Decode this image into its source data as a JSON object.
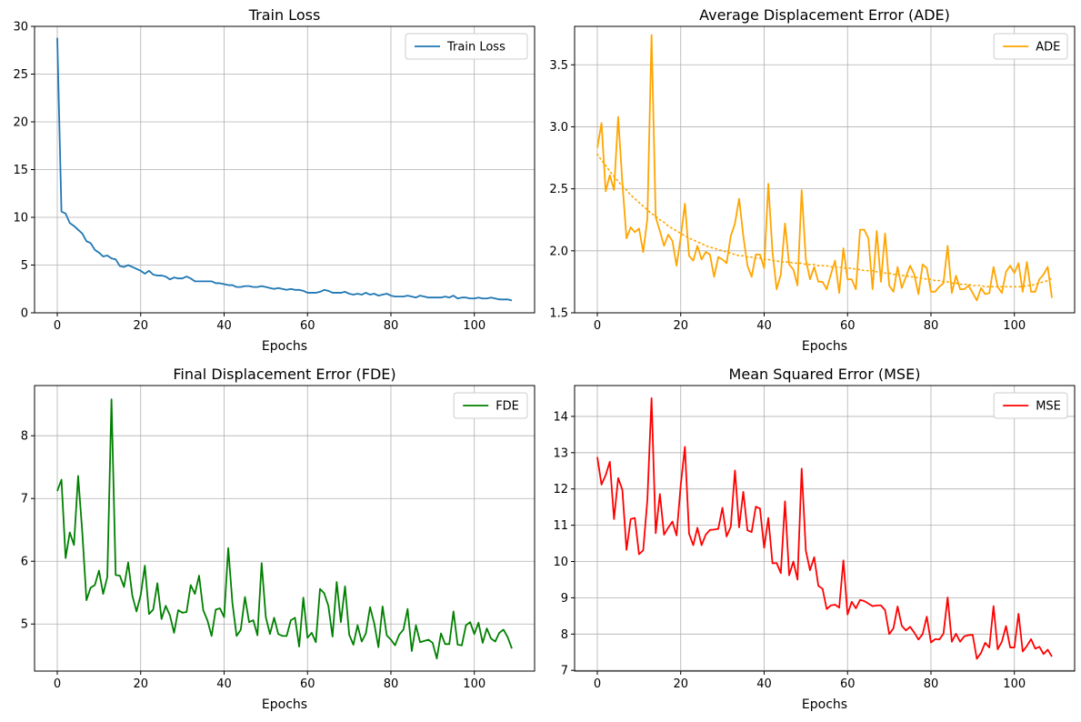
{
  "chart_data": [
    {
      "type": "line",
      "title": "Train Loss",
      "xlabel": "Epochs",
      "ylabel": "",
      "xlim": [
        -5.45,
        114.45
      ],
      "ylim": [
        0,
        30
      ],
      "xticks": [
        0,
        20,
        40,
        60,
        80,
        100
      ],
      "yticks": [
        0,
        5,
        10,
        15,
        20,
        25,
        30
      ],
      "grid": true,
      "legend": "top-right",
      "series": [
        {
          "name": "Train Loss",
          "color": "#1f77b4",
          "style": "solid",
          "values": [
            28.8,
            10.6,
            10.4,
            9.4,
            9.1,
            8.7,
            8.3,
            7.5,
            7.3,
            6.6,
            6.3,
            5.9,
            6.0,
            5.7,
            5.6,
            4.9,
            4.8,
            5.0,
            4.8,
            4.6,
            4.4,
            4.1,
            4.4,
            4.0,
            3.9,
            3.9,
            3.8,
            3.5,
            3.7,
            3.6,
            3.6,
            3.8,
            3.6,
            3.3,
            3.3,
            3.3,
            3.3,
            3.3,
            3.1,
            3.1,
            3.0,
            2.9,
            2.9,
            2.7,
            2.7,
            2.8,
            2.8,
            2.7,
            2.7,
            2.8,
            2.7,
            2.6,
            2.5,
            2.6,
            2.5,
            2.4,
            2.5,
            2.4,
            2.4,
            2.3,
            2.1,
            2.1,
            2.1,
            2.2,
            2.4,
            2.3,
            2.1,
            2.1,
            2.1,
            2.2,
            2.0,
            1.9,
            2.0,
            1.9,
            2.1,
            1.9,
            2.0,
            1.8,
            1.9,
            2.0,
            1.8,
            1.7,
            1.7,
            1.7,
            1.8,
            1.7,
            1.6,
            1.8,
            1.7,
            1.6,
            1.6,
            1.6,
            1.6,
            1.7,
            1.6,
            1.8,
            1.5,
            1.6,
            1.6,
            1.5,
            1.5,
            1.6,
            1.5,
            1.5,
            1.6,
            1.5,
            1.4,
            1.4,
            1.4,
            1.3
          ]
        }
      ]
    },
    {
      "type": "line",
      "title": "Average Displacement Error (ADE)",
      "xlabel": "Epochs",
      "ylabel": "",
      "xlim": [
        -5.45,
        114.45
      ],
      "ylim": [
        1.5,
        3.81
      ],
      "xticks": [
        0,
        20,
        40,
        60,
        80,
        100
      ],
      "yticks": [
        1.5,
        2.0,
        2.5,
        3.0,
        3.5
      ],
      "grid": true,
      "legend": "top-right",
      "series": [
        {
          "name": "ADE",
          "color": "#ffa500",
          "style": "solid",
          "values": [
            2.83,
            3.03,
            2.48,
            2.61,
            2.49,
            3.08,
            2.55,
            2.1,
            2.19,
            2.15,
            2.18,
            1.99,
            2.26,
            3.74,
            2.27,
            2.16,
            2.04,
            2.13,
            2.08,
            1.88,
            2.11,
            2.38,
            1.96,
            1.92,
            2.04,
            1.93,
            1.99,
            1.97,
            1.79,
            1.95,
            1.93,
            1.9,
            2.12,
            2.22,
            2.42,
            2.12,
            1.88,
            1.79,
            1.97,
            1.97,
            1.86,
            2.54,
            1.99,
            1.69,
            1.81,
            2.22,
            1.89,
            1.85,
            1.72,
            2.49,
            1.93,
            1.77,
            1.87,
            1.75,
            1.75,
            1.69,
            1.81,
            1.92,
            1.66,
            2.02,
            1.77,
            1.77,
            1.69,
            2.17,
            2.17,
            2.1,
            1.69,
            2.16,
            1.75,
            2.14,
            1.72,
            1.67,
            1.87,
            1.7,
            1.79,
            1.88,
            1.81,
            1.65,
            1.89,
            1.86,
            1.67,
            1.67,
            1.71,
            1.74,
            2.04,
            1.66,
            1.8,
            1.69,
            1.69,
            1.72,
            1.66,
            1.6,
            1.7,
            1.65,
            1.66,
            1.87,
            1.71,
            1.66,
            1.83,
            1.88,
            1.82,
            1.9,
            1.67,
            1.91,
            1.67,
            1.67,
            1.77,
            1.81,
            1.87,
            1.62
          ]
        },
        {
          "name": "",
          "color": "#ffa500",
          "style": "dotted",
          "values": [
            2.78,
            2.73,
            2.69,
            2.64,
            2.6,
            2.56,
            2.52,
            2.49,
            2.45,
            2.42,
            2.39,
            2.36,
            2.33,
            2.3,
            2.28,
            2.25,
            2.23,
            2.2,
            2.18,
            2.16,
            2.14,
            2.12,
            2.1,
            2.09,
            2.07,
            2.06,
            2.04,
            2.03,
            2.02,
            2.01,
            2.0,
            1.99,
            1.98,
            1.97,
            1.96,
            1.96,
            1.95,
            1.95,
            1.94,
            1.94,
            1.93,
            1.93,
            1.92,
            1.92,
            1.91,
            1.91,
            1.91,
            1.9,
            1.9,
            1.9,
            1.89,
            1.89,
            1.89,
            1.88,
            1.88,
            1.88,
            1.87,
            1.87,
            1.87,
            1.86,
            1.86,
            1.86,
            1.85,
            1.85,
            1.84,
            1.84,
            1.84,
            1.83,
            1.83,
            1.82,
            1.82,
            1.81,
            1.81,
            1.8,
            1.8,
            1.79,
            1.79,
            1.78,
            1.78,
            1.77,
            1.77,
            1.76,
            1.76,
            1.75,
            1.75,
            1.74,
            1.74,
            1.73,
            1.73,
            1.73,
            1.72,
            1.72,
            1.72,
            1.71,
            1.71,
            1.71,
            1.71,
            1.71,
            1.71,
            1.71,
            1.71,
            1.71,
            1.71,
            1.72,
            1.72,
            1.73,
            1.74,
            1.75,
            1.76,
            1.78
          ]
        }
      ]
    },
    {
      "type": "line",
      "title": "Final Displacement Error (FDE)",
      "xlabel": "Epochs",
      "ylabel": "",
      "xlim": [
        -5.45,
        114.45
      ],
      "ylim": [
        4.25,
        8.8
      ],
      "xticks": [
        0,
        20,
        40,
        60,
        80,
        100
      ],
      "yticks": [
        5,
        6,
        7,
        8
      ],
      "grid": true,
      "legend": "top-right",
      "series": [
        {
          "name": "FDE",
          "color": "#008000",
          "style": "solid",
          "values": [
            7.12,
            7.3,
            6.05,
            6.46,
            6.26,
            7.36,
            6.46,
            5.38,
            5.58,
            5.62,
            5.85,
            5.48,
            5.75,
            8.58,
            5.78,
            5.77,
            5.59,
            5.98,
            5.45,
            5.2,
            5.46,
            5.93,
            5.16,
            5.23,
            5.65,
            5.08,
            5.29,
            5.14,
            4.86,
            5.22,
            5.18,
            5.19,
            5.62,
            5.48,
            5.77,
            5.22,
            5.06,
            4.81,
            5.23,
            5.25,
            5.11,
            6.21,
            5.33,
            4.81,
            4.91,
            5.43,
            5.03,
            5.06,
            4.82,
            5.97,
            5.11,
            4.84,
            5.1,
            4.84,
            4.81,
            4.81,
            5.06,
            5.1,
            4.64,
            5.42,
            4.78,
            4.86,
            4.71,
            5.56,
            5.49,
            5.29,
            4.8,
            5.67,
            5.03,
            5.6,
            4.83,
            4.67,
            4.98,
            4.72,
            4.85,
            5.27,
            5.01,
            4.63,
            5.28,
            4.82,
            4.75,
            4.66,
            4.83,
            4.91,
            5.24,
            4.57,
            4.98,
            4.71,
            4.73,
            4.75,
            4.7,
            4.45,
            4.85,
            4.68,
            4.68,
            5.2,
            4.67,
            4.66,
            4.98,
            5.03,
            4.84,
            5.02,
            4.7,
            4.93,
            4.77,
            4.72,
            4.86,
            4.91,
            4.79,
            4.61
          ]
        }
      ]
    },
    {
      "type": "line",
      "title": "Mean Squared Error (MSE)",
      "xlabel": "Epochs",
      "ylabel": "",
      "xlim": [
        -5.45,
        114.45
      ],
      "ylim": [
        6.98,
        14.85
      ],
      "xticks": [
        0,
        20,
        40,
        60,
        80,
        100
      ],
      "yticks": [
        7,
        8,
        9,
        10,
        11,
        12,
        13,
        14
      ],
      "grid": true,
      "legend": "top-right",
      "series": [
        {
          "name": "MSE",
          "color": "#ff0000",
          "style": "solid",
          "values": [
            12.88,
            12.12,
            12.38,
            12.75,
            11.17,
            12.3,
            11.98,
            10.32,
            11.17,
            11.2,
            10.2,
            10.31,
            11.69,
            14.5,
            10.78,
            11.86,
            10.74,
            10.93,
            11.1,
            10.72,
            12.11,
            13.16,
            10.77,
            10.45,
            10.93,
            10.45,
            10.74,
            10.87,
            10.88,
            10.9,
            11.48,
            10.69,
            10.96,
            12.51,
            10.94,
            11.92,
            10.86,
            10.81,
            11.51,
            11.46,
            10.38,
            11.2,
            9.95,
            9.96,
            9.68,
            11.66,
            9.62,
            10.0,
            9.5,
            12.56,
            10.3,
            9.76,
            10.12,
            9.33,
            9.25,
            8.69,
            8.79,
            8.81,
            8.73,
            10.03,
            8.54,
            8.89,
            8.71,
            8.94,
            8.91,
            8.84,
            8.77,
            8.79,
            8.79,
            8.66,
            8.0,
            8.16,
            8.76,
            8.23,
            8.1,
            8.2,
            8.04,
            7.85,
            8.0,
            8.48,
            7.77,
            7.86,
            7.85,
            8.01,
            9.01,
            7.79,
            8.01,
            7.79,
            7.94,
            7.97,
            7.98,
            7.32,
            7.48,
            7.76,
            7.63,
            8.77,
            7.58,
            7.79,
            8.22,
            7.63,
            7.63,
            8.56,
            7.52,
            7.67,
            7.86,
            7.6,
            7.65,
            7.45,
            7.57,
            7.38
          ]
        }
      ]
    }
  ]
}
